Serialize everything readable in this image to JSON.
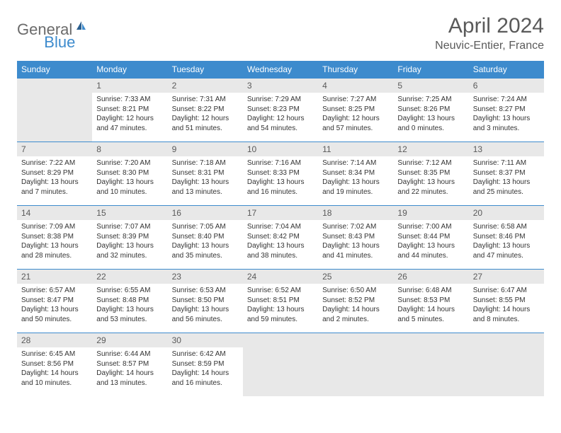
{
  "logo": {
    "gray": "General",
    "blue": "Blue"
  },
  "title": "April 2024",
  "location": "Neuvic-Entier, France",
  "colors": {
    "header_bg": "#3d8bcd",
    "header_text": "#ffffff",
    "daynum_bg": "#e8e8e8",
    "daynum_text": "#5a5a5a",
    "body_text": "#333333",
    "title_text": "#5a5a5a",
    "logo_gray": "#6b6b6b",
    "logo_blue": "#3d8bcd",
    "row_border": "#3d8bcd"
  },
  "dayNames": [
    "Sunday",
    "Monday",
    "Tuesday",
    "Wednesday",
    "Thursday",
    "Friday",
    "Saturday"
  ],
  "weeks": [
    [
      null,
      {
        "n": "1",
        "sr": "7:33 AM",
        "ss": "8:21 PM",
        "dl": "12 hours and 47 minutes."
      },
      {
        "n": "2",
        "sr": "7:31 AM",
        "ss": "8:22 PM",
        "dl": "12 hours and 51 minutes."
      },
      {
        "n": "3",
        "sr": "7:29 AM",
        "ss": "8:23 PM",
        "dl": "12 hours and 54 minutes."
      },
      {
        "n": "4",
        "sr": "7:27 AM",
        "ss": "8:25 PM",
        "dl": "12 hours and 57 minutes."
      },
      {
        "n": "5",
        "sr": "7:25 AM",
        "ss": "8:26 PM",
        "dl": "13 hours and 0 minutes."
      },
      {
        "n": "6",
        "sr": "7:24 AM",
        "ss": "8:27 PM",
        "dl": "13 hours and 3 minutes."
      }
    ],
    [
      {
        "n": "7",
        "sr": "7:22 AM",
        "ss": "8:29 PM",
        "dl": "13 hours and 7 minutes."
      },
      {
        "n": "8",
        "sr": "7:20 AM",
        "ss": "8:30 PM",
        "dl": "13 hours and 10 minutes."
      },
      {
        "n": "9",
        "sr": "7:18 AM",
        "ss": "8:31 PM",
        "dl": "13 hours and 13 minutes."
      },
      {
        "n": "10",
        "sr": "7:16 AM",
        "ss": "8:33 PM",
        "dl": "13 hours and 16 minutes."
      },
      {
        "n": "11",
        "sr": "7:14 AM",
        "ss": "8:34 PM",
        "dl": "13 hours and 19 minutes."
      },
      {
        "n": "12",
        "sr": "7:12 AM",
        "ss": "8:35 PM",
        "dl": "13 hours and 22 minutes."
      },
      {
        "n": "13",
        "sr": "7:11 AM",
        "ss": "8:37 PM",
        "dl": "13 hours and 25 minutes."
      }
    ],
    [
      {
        "n": "14",
        "sr": "7:09 AM",
        "ss": "8:38 PM",
        "dl": "13 hours and 28 minutes."
      },
      {
        "n": "15",
        "sr": "7:07 AM",
        "ss": "8:39 PM",
        "dl": "13 hours and 32 minutes."
      },
      {
        "n": "16",
        "sr": "7:05 AM",
        "ss": "8:40 PM",
        "dl": "13 hours and 35 minutes."
      },
      {
        "n": "17",
        "sr": "7:04 AM",
        "ss": "8:42 PM",
        "dl": "13 hours and 38 minutes."
      },
      {
        "n": "18",
        "sr": "7:02 AM",
        "ss": "8:43 PM",
        "dl": "13 hours and 41 minutes."
      },
      {
        "n": "19",
        "sr": "7:00 AM",
        "ss": "8:44 PM",
        "dl": "13 hours and 44 minutes."
      },
      {
        "n": "20",
        "sr": "6:58 AM",
        "ss": "8:46 PM",
        "dl": "13 hours and 47 minutes."
      }
    ],
    [
      {
        "n": "21",
        "sr": "6:57 AM",
        "ss": "8:47 PM",
        "dl": "13 hours and 50 minutes."
      },
      {
        "n": "22",
        "sr": "6:55 AM",
        "ss": "8:48 PM",
        "dl": "13 hours and 53 minutes."
      },
      {
        "n": "23",
        "sr": "6:53 AM",
        "ss": "8:50 PM",
        "dl": "13 hours and 56 minutes."
      },
      {
        "n": "24",
        "sr": "6:52 AM",
        "ss": "8:51 PM",
        "dl": "13 hours and 59 minutes."
      },
      {
        "n": "25",
        "sr": "6:50 AM",
        "ss": "8:52 PM",
        "dl": "14 hours and 2 minutes."
      },
      {
        "n": "26",
        "sr": "6:48 AM",
        "ss": "8:53 PM",
        "dl": "14 hours and 5 minutes."
      },
      {
        "n": "27",
        "sr": "6:47 AM",
        "ss": "8:55 PM",
        "dl": "14 hours and 8 minutes."
      }
    ],
    [
      {
        "n": "28",
        "sr": "6:45 AM",
        "ss": "8:56 PM",
        "dl": "14 hours and 10 minutes."
      },
      {
        "n": "29",
        "sr": "6:44 AM",
        "ss": "8:57 PM",
        "dl": "14 hours and 13 minutes."
      },
      {
        "n": "30",
        "sr": "6:42 AM",
        "ss": "8:59 PM",
        "dl": "14 hours and 16 minutes."
      },
      null,
      null,
      null,
      null
    ]
  ],
  "labels": {
    "sunrise": "Sunrise:",
    "sunset": "Sunset:",
    "daylight": "Daylight:"
  }
}
